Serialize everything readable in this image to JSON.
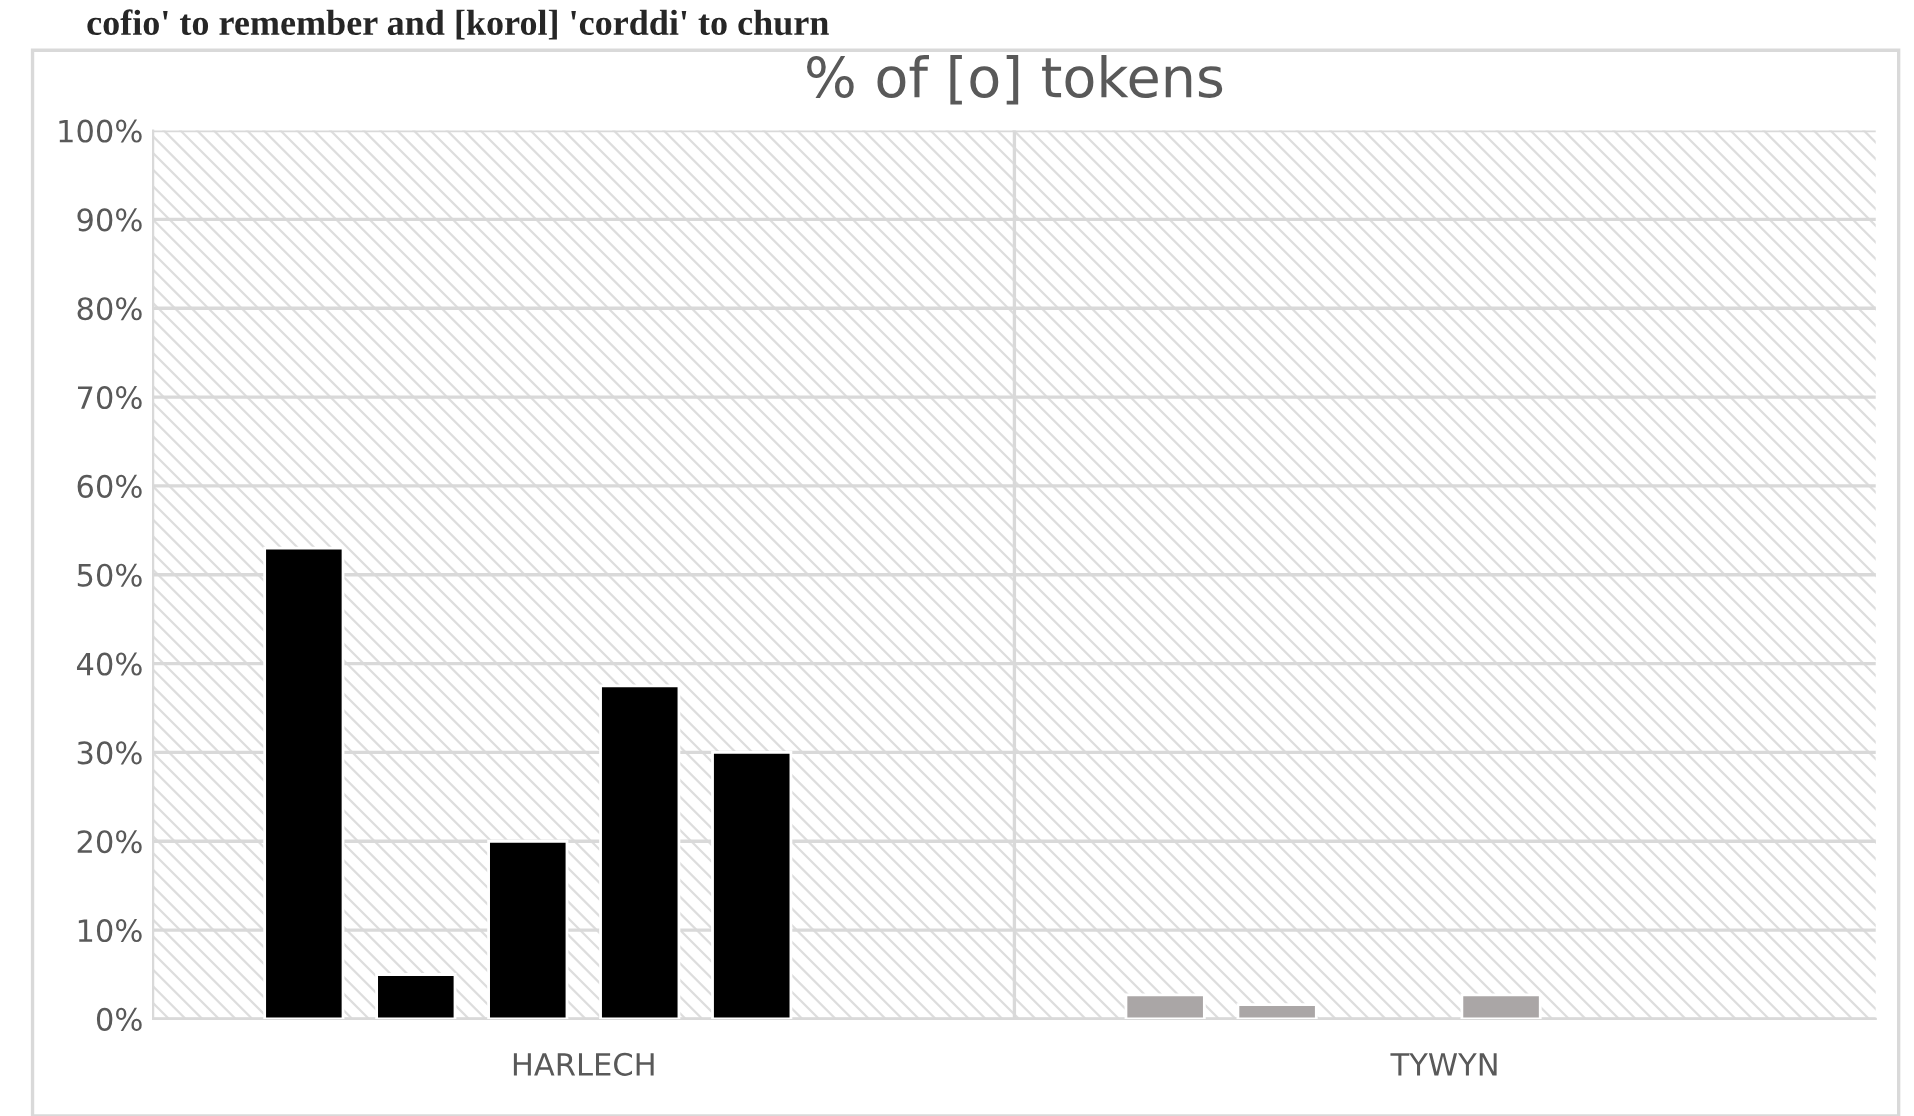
{
  "chart_data": {
    "type": "bar",
    "title": "% of [o] tokens",
    "annotations": [
      "cofio' to remember and [korol] 'corddi' to churn"
    ],
    "categories": [
      "HARLECH",
      "TYWYN"
    ],
    "series": [
      {
        "colors": [
          "#000000",
          "#aaa6a6"
        ],
        "values": [
          53,
          2.7
        ]
      },
      {
        "colors": [
          "#000000",
          "#aaa6a6"
        ],
        "values": [
          5,
          1.6
        ]
      },
      {
        "colors": [
          "#000000",
          "#aaa6a6"
        ],
        "values": [
          20,
          null
        ]
      },
      {
        "colors": [
          "#000000",
          "#aaa6a6"
        ],
        "values": [
          37.5,
          2.7
        ]
      },
      {
        "colors": [
          "#000000",
          "#aaa6a6"
        ],
        "values": [
          30,
          null
        ]
      },
      {
        "colors": [
          "#000000",
          "#aaa6a6"
        ],
        "values": [
          null,
          null
        ]
      }
    ],
    "ylim": [
      0,
      100
    ],
    "yticks": [
      {
        "value": 0,
        "label": "0%"
      },
      {
        "value": 10,
        "label": "10%"
      },
      {
        "value": 20,
        "label": "20%"
      },
      {
        "value": 30,
        "label": "30%"
      },
      {
        "value": 40,
        "label": "40%"
      },
      {
        "value": 50,
        "label": "50%"
      },
      {
        "value": 60,
        "label": "60%"
      },
      {
        "value": 70,
        "label": "70%"
      },
      {
        "value": 80,
        "label": "80%"
      },
      {
        "value": 90,
        "label": "90%"
      },
      {
        "value": 100,
        "label": "100%"
      }
    ],
    "grid": "y",
    "legend": false
  }
}
